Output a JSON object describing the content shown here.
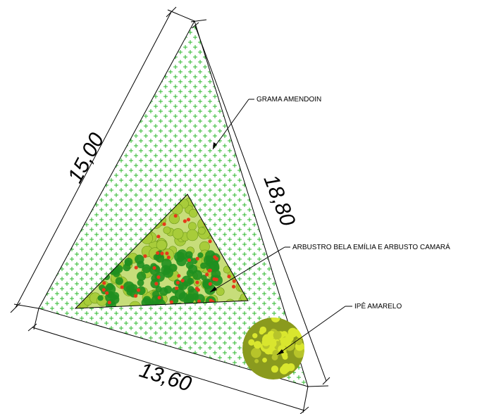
{
  "dimensions": {
    "left_side": "15,00",
    "right_side": "18,80",
    "bottom_side": "13,60"
  },
  "callouts": {
    "grass": "GRAMA AMENDOIN",
    "shrubs": "ARBUSTRO BELA EMÍLIA E ARBUSTO CAMARÁ",
    "tree": "IPÊ AMARELO"
  },
  "colors": {
    "grass_pattern": "#2eb82e",
    "shrub_light": "#a8cc3a",
    "shrub_dark": "#1f8f1f",
    "flower_red": "#e53a1a",
    "tree_yellow": "#d9e62e",
    "tree_olive": "#8a9a1e"
  }
}
